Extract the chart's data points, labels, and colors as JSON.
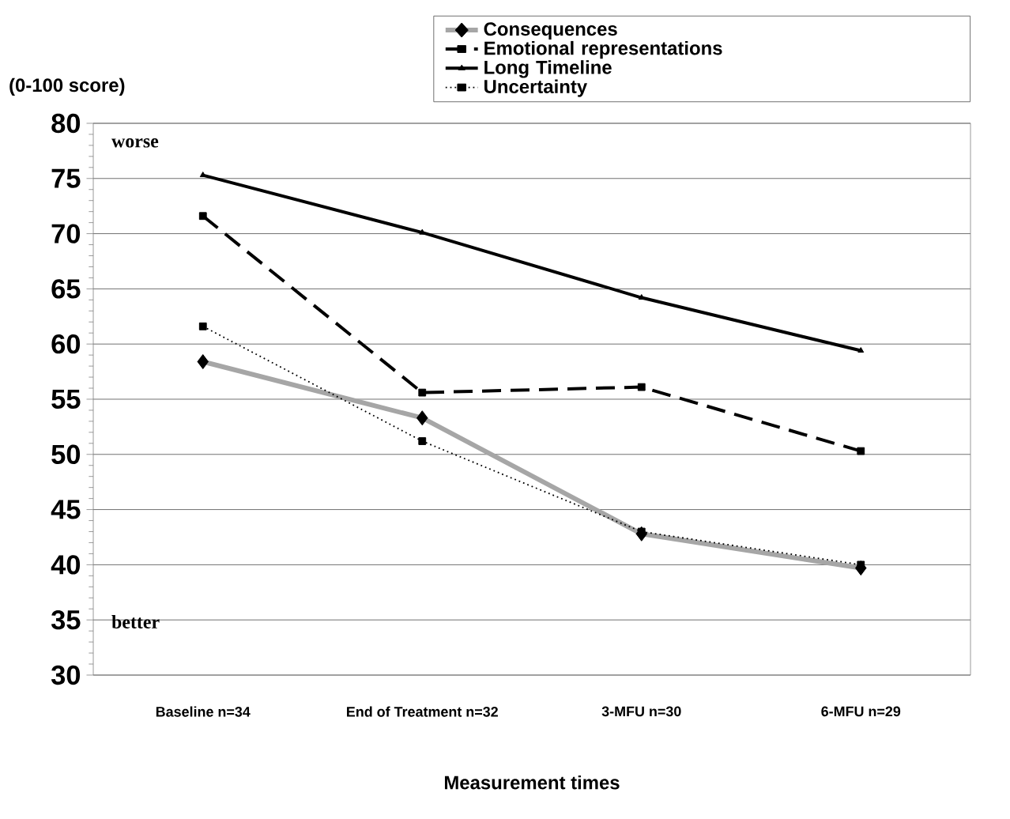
{
  "chart_data": {
    "type": "line",
    "categories": [
      "Baseline n=34",
      "End of Treatment n=32",
      "3-MFU n=30",
      "6-MFU n=29"
    ],
    "xlabel": "Measurement times",
    "ylabel": "(0-100 score)",
    "ylim": [
      30,
      80
    ],
    "yticks": [
      30,
      35,
      40,
      45,
      50,
      55,
      60,
      65,
      70,
      75,
      80
    ],
    "grid": "y",
    "legend": "top right",
    "annotations": [
      "worse",
      "better"
    ],
    "series": [
      {
        "name": "Consequences",
        "color": "#a6a6a6",
        "marker": "diamond",
        "line_style": "solid",
        "values": [
          58.4,
          53.3,
          42.8,
          39.7
        ]
      },
      {
        "name": "Emotional representations",
        "color": "#000000",
        "marker": "square",
        "line_style": "dashed",
        "values": [
          71.6,
          55.6,
          56.1,
          50.3
        ]
      },
      {
        "name": "Long Timeline",
        "color": "#000000",
        "marker": "triangle",
        "line_style": "solid",
        "values": [
          75.3,
          70.1,
          64.2,
          59.4
        ]
      },
      {
        "name": "Uncertainty",
        "color": "#000000",
        "marker": "square",
        "line_style": "dotted",
        "values": [
          61.6,
          51.2,
          43.0,
          40.0
        ]
      }
    ]
  }
}
